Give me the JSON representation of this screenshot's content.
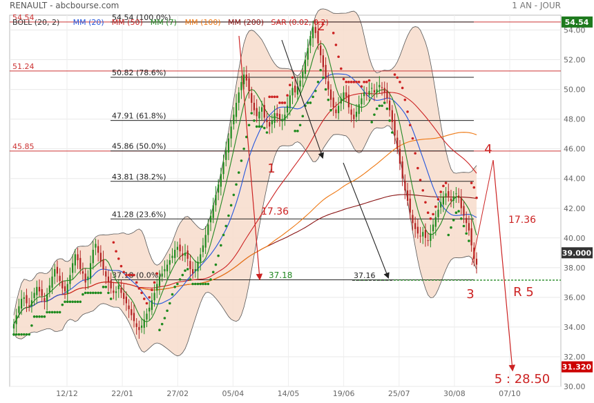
{
  "header": {
    "title": "RENAULT - abcbourse.com",
    "period": "1 AN - JOUR"
  },
  "chart_data": {
    "type": "candlestick",
    "title": "RENAULT - abcbourse.com",
    "period": "1 AN - JOUR",
    "ylim": [
      30,
      55
    ],
    "y_ticks": [
      "30.00",
      "32.00",
      "34.00",
      "36.00",
      "38.00",
      "40.00",
      "42.00",
      "44.00",
      "46.00",
      "48.00",
      "50.00",
      "52.00",
      "54.00"
    ],
    "x_ticks": [
      "12/12",
      "22/01",
      "27/02",
      "05/04",
      "14/05",
      "19/06",
      "25/07",
      "30/08",
      "07/10"
    ],
    "legend": [
      {
        "label": "BOLL (20, 2)",
        "color": "#333333"
      },
      {
        "label": "MM (20)",
        "color": "#2255dd"
      },
      {
        "label": "MM (50)",
        "color": "#cc2222"
      },
      {
        "label": "MM (7)",
        "color": "#228822"
      },
      {
        "label": "MM (100)",
        "color": "#ee7711"
      },
      {
        "label": "MM (200)",
        "color": "#881111"
      },
      {
        "label": "SAR (0.02, 0.2)",
        "color": "#cc2222"
      }
    ],
    "price_badges": [
      {
        "label": "54.54",
        "value": 54.54,
        "color": "#1e7a1e"
      },
      {
        "label": "39.000",
        "value": 39.0,
        "color": "#333333"
      },
      {
        "label": "31.320",
        "value": 31.32,
        "color": "#cc0000"
      }
    ],
    "horizontal_levels": [
      {
        "label": "54.54",
        "value": 54.54
      },
      {
        "label": "51.24",
        "value": 51.24
      },
      {
        "label": "45.85",
        "value": 45.85
      }
    ],
    "fibonacci_levels": [
      {
        "label": "54.54  (100.0%)",
        "value": 54.54
      },
      {
        "label": "50.82  (78.6%)",
        "value": 50.82
      },
      {
        "label": "47.91  (61.8%)",
        "value": 47.91
      },
      {
        "label": "45.86  (50.0%)",
        "value": 45.86
      },
      {
        "label": "43.81  (38.2%)",
        "value": 43.81
      },
      {
        "label": "41.28  (23.6%)",
        "value": 41.28
      },
      {
        "label": "37.18  (0.0%)",
        "value": 37.18
      }
    ],
    "support_line": {
      "label": "37.16",
      "value": 37.16
    },
    "annotations": {
      "wave1": "1",
      "wave2": "2",
      "wave3": "3",
      "wave4": "4",
      "wave5": "5 : 28.50",
      "range_left": "17.36",
      "range_right": "17.36",
      "target_left": "37.18",
      "resistance": "R 5"
    },
    "closes": [
      34.2,
      34.8,
      35.4,
      35.9,
      36.0,
      35.6,
      35.4,
      35.8,
      36.3,
      36.7,
      36.4,
      36.1,
      35.7,
      36.2,
      36.8,
      37.4,
      37.9,
      37.6,
      37.1,
      36.6,
      36.4,
      36.9,
      37.5,
      38.3,
      38.9,
      38.5,
      37.9,
      37.6,
      37.0,
      37.4,
      38.3,
      39.2,
      39.6,
      39.0,
      38.4,
      37.9,
      37.4,
      37.0,
      36.6,
      36.3,
      36.4,
      36.8,
      36.3,
      35.9,
      35.6,
      35.2,
      34.8,
      34.4,
      34.0,
      33.8,
      34.1,
      34.5,
      34.9,
      35.3,
      35.8,
      36.3,
      36.9,
      37.4,
      37.6,
      37.9,
      38.2,
      38.5,
      38.8,
      39.2,
      39.4,
      39.1,
      38.8,
      39.0,
      38.6,
      37.9,
      37.6,
      37.9,
      38.4,
      38.9,
      39.5,
      40.2,
      40.9,
      41.5,
      42.2,
      42.9,
      43.6,
      44.3,
      45.1,
      45.9,
      46.7,
      47.5,
      48.3,
      49.1,
      49.8,
      50.5,
      51.0,
      50.6,
      49.9,
      49.1,
      48.6,
      48.2,
      48.5,
      48.8,
      48.1,
      47.8,
      47.5,
      47.9,
      48.4,
      48.2,
      48.0,
      47.9,
      48.3,
      48.9,
      49.6,
      50.1,
      49.8,
      50.2,
      50.6,
      51.2,
      52.0,
      52.8,
      53.6,
      54.2,
      53.8,
      53.1,
      52.3,
      51.5,
      50.7,
      50.0,
      49.3,
      48.8,
      48.4,
      48.9,
      49.4,
      49.8,
      49.5,
      48.8,
      48.3,
      48.0,
      48.5,
      49.0,
      49.4,
      49.8,
      49.6,
      49.9,
      50.1,
      49.8,
      50.0,
      50.3,
      50.1,
      49.8,
      49.4,
      48.6,
      47.8,
      46.9,
      46.0,
      45.0,
      44.0,
      43.2,
      42.5,
      41.7,
      41.0,
      40.6,
      40.3,
      40.1,
      40.4,
      40.0,
      39.8,
      40.3,
      40.9,
      41.4,
      41.9,
      42.4,
      42.8,
      43.0,
      42.8,
      42.5,
      42.8,
      43.0,
      42.7,
      42.0,
      41.5,
      41.0,
      40.5,
      39.5,
      38.6,
      38.2
    ]
  }
}
